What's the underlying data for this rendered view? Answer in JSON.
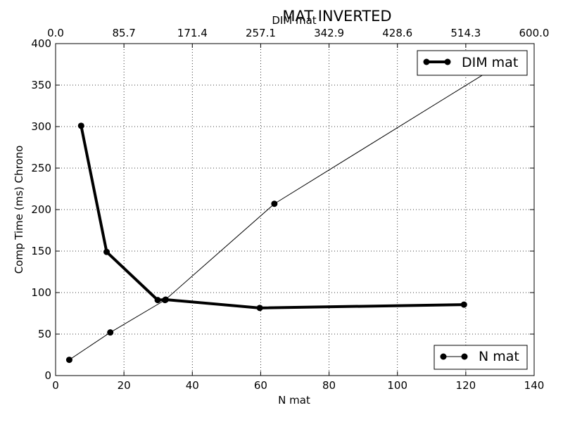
{
  "chart_data": {
    "type": "line",
    "title": "MAT INVERTED",
    "ylabel": "Comp Time (ms) Chrono",
    "xlabel_bottom": "N mat",
    "xlabel_top": "DIM mat",
    "xlim_bottom": [
      0,
      140
    ],
    "xlim_top": [
      0,
      600
    ],
    "ylim": [
      0,
      400
    ],
    "x_ticks_bottom": [
      "0",
      "20",
      "40",
      "60",
      "80",
      "100",
      "120",
      "140"
    ],
    "x_ticks_top": [
      "0.0",
      "85.7",
      "171.4",
      "257.1",
      "342.9",
      "428.6",
      "514.3",
      "600.0"
    ],
    "y_ticks": [
      "0",
      "50",
      "100",
      "150",
      "200",
      "250",
      "300",
      "350",
      "400"
    ],
    "grid": true,
    "series": [
      {
        "name": "DIM mat",
        "axis": "top",
        "style": "thick",
        "color": "#000000",
        "x": [
          32,
          64,
          128,
          138,
          256,
          512
        ],
        "y": [
          301,
          149,
          91,
          91.5,
          81.5,
          85.5
        ],
        "legend_position": "top-right"
      },
      {
        "name": "N mat",
        "axis": "bottom",
        "style": "thin",
        "color": "#000000",
        "x": [
          4,
          16,
          32,
          64,
          128
        ],
        "y": [
          19,
          52,
          91,
          207,
          370
        ],
        "legend_position": "bottom-right"
      }
    ]
  }
}
